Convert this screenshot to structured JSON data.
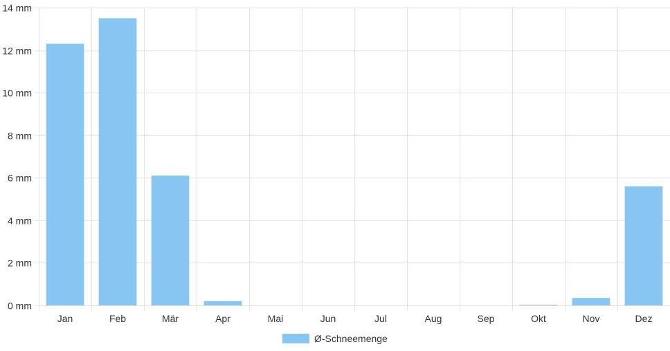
{
  "chart_data": {
    "type": "bar",
    "categories": [
      "Jan",
      "Feb",
      "Mär",
      "Apr",
      "Mai",
      "Jun",
      "Jul",
      "Aug",
      "Sep",
      "Okt",
      "Nov",
      "Dez"
    ],
    "series": [
      {
        "name": "Ø-Schneemenge",
        "values": [
          12.3,
          13.5,
          6.1,
          0.2,
          0,
          0,
          0,
          0,
          0,
          0.03,
          0.35,
          5.6
        ],
        "color": "#87c5f2"
      }
    ],
    "y_ticks": [
      "0 mm",
      "2 mm",
      "4 mm",
      "6 mm",
      "8 mm",
      "10 mm",
      "12 mm",
      "14 mm"
    ],
    "ylim": [
      0,
      14
    ],
    "grid": true,
    "legend_position": "bottom"
  }
}
